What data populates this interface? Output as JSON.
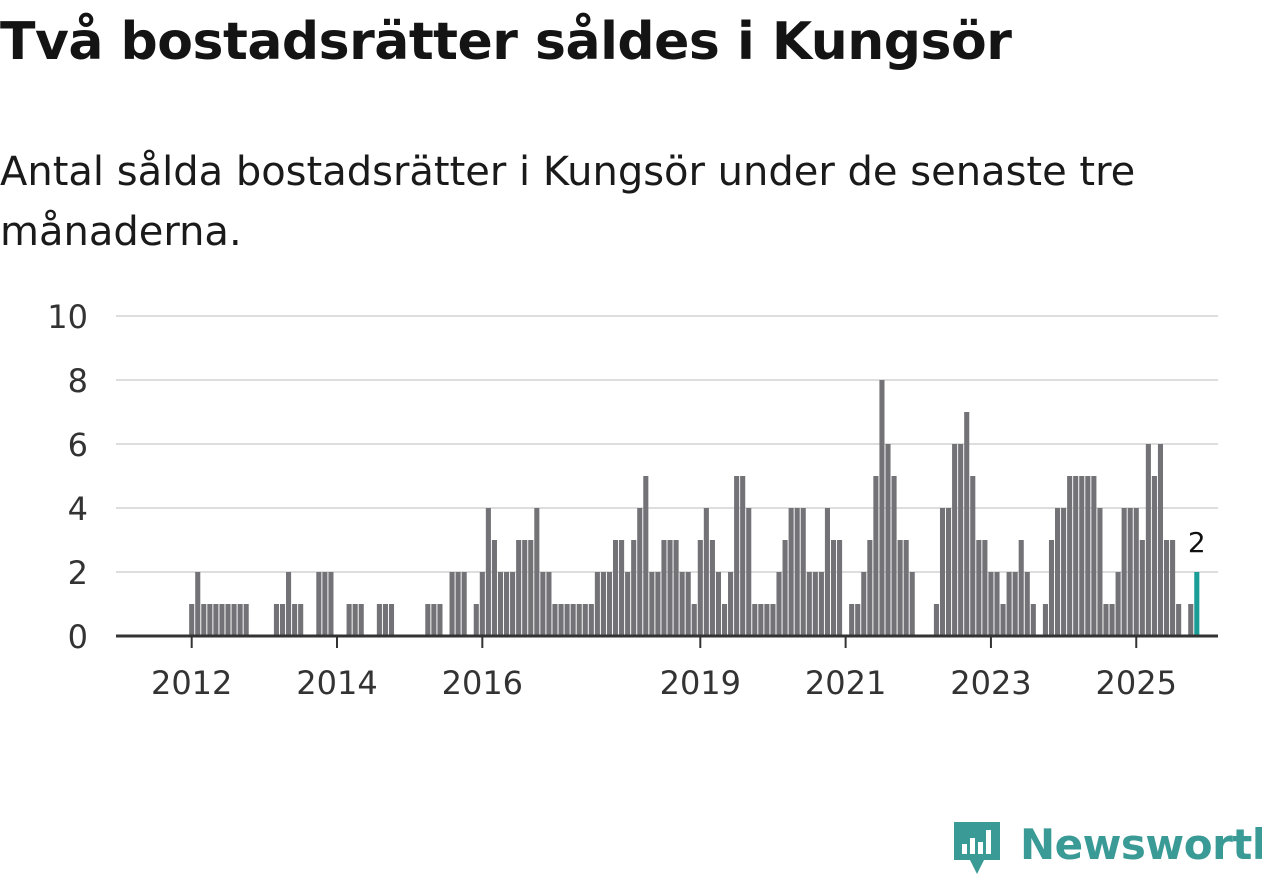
{
  "header": {
    "title": "Två bostadsrätter såldes i Kungsör",
    "subtitle": "Antal sålda bostadsrätter i Kungsör under de senaste tre månaderna."
  },
  "brand": {
    "name": "Newsworthy",
    "color": "#3a9a96"
  },
  "colors": {
    "bar": "#737277",
    "highlight": "#1a9c97",
    "grid": "#dddddd",
    "axis": "#333333"
  },
  "chart_data": {
    "type": "bar",
    "title": "Två bostadsrätter såldes i Kungsör",
    "subtitle": "Antal sålda bostadsrätter i Kungsör under de senaste tre månaderna.",
    "xlabel": "",
    "ylabel": "",
    "ylim": [
      0,
      10
    ],
    "yticks": [
      0,
      2,
      4,
      6,
      8,
      10
    ],
    "grid": true,
    "x_start": "2011-01",
    "x_end": "2026-03",
    "xtick_labels": [
      {
        "label": "2012",
        "year": 2012
      },
      {
        "label": "2014",
        "year": 2014
      },
      {
        "label": "2016",
        "year": 2016
      },
      {
        "label": "2019",
        "year": 2019
      },
      {
        "label": "2021",
        "year": 2021
      },
      {
        "label": "2023",
        "year": 2023
      },
      {
        "label": "2025",
        "year": 2025
      }
    ],
    "series": [
      {
        "name": "Sålda bostadsrätter",
        "bars": [
          {
            "month": "2012-01",
            "value": 1
          },
          {
            "month": "2012-02",
            "value": 2
          },
          {
            "month": "2012-03",
            "value": 1
          },
          {
            "month": "2012-04",
            "value": 1
          },
          {
            "month": "2012-05",
            "value": 1
          },
          {
            "month": "2012-06",
            "value": 1
          },
          {
            "month": "2012-07",
            "value": 1
          },
          {
            "month": "2012-08",
            "value": 1
          },
          {
            "month": "2012-09",
            "value": 1
          },
          {
            "month": "2012-10",
            "value": 1
          },
          {
            "month": "2013-03",
            "value": 1
          },
          {
            "month": "2013-04",
            "value": 1
          },
          {
            "month": "2013-05",
            "value": 2
          },
          {
            "month": "2013-06",
            "value": 1
          },
          {
            "month": "2013-07",
            "value": 1
          },
          {
            "month": "2013-10",
            "value": 2
          },
          {
            "month": "2013-11",
            "value": 2
          },
          {
            "month": "2013-12",
            "value": 2
          },
          {
            "month": "2014-03",
            "value": 1
          },
          {
            "month": "2014-04",
            "value": 1
          },
          {
            "month": "2014-05",
            "value": 1
          },
          {
            "month": "2014-08",
            "value": 1
          },
          {
            "month": "2014-09",
            "value": 1
          },
          {
            "month": "2014-10",
            "value": 1
          },
          {
            "month": "2015-04",
            "value": 1
          },
          {
            "month": "2015-05",
            "value": 1
          },
          {
            "month": "2015-06",
            "value": 1
          },
          {
            "month": "2015-08",
            "value": 2
          },
          {
            "month": "2015-09",
            "value": 2
          },
          {
            "month": "2015-10",
            "value": 2
          },
          {
            "month": "2015-12",
            "value": 1
          },
          {
            "month": "2016-01",
            "value": 2
          },
          {
            "month": "2016-02",
            "value": 4
          },
          {
            "month": "2016-03",
            "value": 3
          },
          {
            "month": "2016-04",
            "value": 2
          },
          {
            "month": "2016-05",
            "value": 2
          },
          {
            "month": "2016-06",
            "value": 2
          },
          {
            "month": "2016-07",
            "value": 3
          },
          {
            "month": "2016-08",
            "value": 3
          },
          {
            "month": "2016-09",
            "value": 3
          },
          {
            "month": "2016-10",
            "value": 4
          },
          {
            "month": "2016-11",
            "value": 2
          },
          {
            "month": "2016-12",
            "value": 2
          },
          {
            "month": "2017-01",
            "value": 1
          },
          {
            "month": "2017-02",
            "value": 1
          },
          {
            "month": "2017-03",
            "value": 1
          },
          {
            "month": "2017-04",
            "value": 1
          },
          {
            "month": "2017-05",
            "value": 1
          },
          {
            "month": "2017-06",
            "value": 1
          },
          {
            "month": "2017-07",
            "value": 1
          },
          {
            "month": "2017-08",
            "value": 2
          },
          {
            "month": "2017-09",
            "value": 2
          },
          {
            "month": "2017-10",
            "value": 2
          },
          {
            "month": "2017-11",
            "value": 3
          },
          {
            "month": "2017-12",
            "value": 3
          },
          {
            "month": "2018-01",
            "value": 2
          },
          {
            "month": "2018-02",
            "value": 3
          },
          {
            "month": "2018-03",
            "value": 4
          },
          {
            "month": "2018-04",
            "value": 5
          },
          {
            "month": "2018-05",
            "value": 2
          },
          {
            "month": "2018-06",
            "value": 2
          },
          {
            "month": "2018-07",
            "value": 3
          },
          {
            "month": "2018-08",
            "value": 3
          },
          {
            "month": "2018-09",
            "value": 3
          },
          {
            "month": "2018-10",
            "value": 2
          },
          {
            "month": "2018-11",
            "value": 2
          },
          {
            "month": "2018-12",
            "value": 1
          },
          {
            "month": "2019-01",
            "value": 3
          },
          {
            "month": "2019-02",
            "value": 4
          },
          {
            "month": "2019-03",
            "value": 3
          },
          {
            "month": "2019-04",
            "value": 2
          },
          {
            "month": "2019-05",
            "value": 1
          },
          {
            "month": "2019-06",
            "value": 2
          },
          {
            "month": "2019-07",
            "value": 5
          },
          {
            "month": "2019-08",
            "value": 5
          },
          {
            "month": "2019-09",
            "value": 4
          },
          {
            "month": "2019-10",
            "value": 1
          },
          {
            "month": "2019-11",
            "value": 1
          },
          {
            "month": "2019-12",
            "value": 1
          },
          {
            "month": "2020-01",
            "value": 1
          },
          {
            "month": "2020-02",
            "value": 2
          },
          {
            "month": "2020-03",
            "value": 3
          },
          {
            "month": "2020-04",
            "value": 4
          },
          {
            "month": "2020-05",
            "value": 4
          },
          {
            "month": "2020-06",
            "value": 4
          },
          {
            "month": "2020-07",
            "value": 2
          },
          {
            "month": "2020-08",
            "value": 2
          },
          {
            "month": "2020-09",
            "value": 2
          },
          {
            "month": "2020-10",
            "value": 4
          },
          {
            "month": "2020-11",
            "value": 3
          },
          {
            "month": "2020-12",
            "value": 3
          },
          {
            "month": "2021-02",
            "value": 1
          },
          {
            "month": "2021-03",
            "value": 1
          },
          {
            "month": "2021-04",
            "value": 2
          },
          {
            "month": "2021-05",
            "value": 3
          },
          {
            "month": "2021-06",
            "value": 5
          },
          {
            "month": "2021-07",
            "value": 8
          },
          {
            "month": "2021-08",
            "value": 6
          },
          {
            "month": "2021-09",
            "value": 5
          },
          {
            "month": "2021-10",
            "value": 3
          },
          {
            "month": "2021-11",
            "value": 3
          },
          {
            "month": "2021-12",
            "value": 2
          },
          {
            "month": "2022-04",
            "value": 1
          },
          {
            "month": "2022-05",
            "value": 4
          },
          {
            "month": "2022-06",
            "value": 4
          },
          {
            "month": "2022-07",
            "value": 6
          },
          {
            "month": "2022-08",
            "value": 6
          },
          {
            "month": "2022-09",
            "value": 7
          },
          {
            "month": "2022-10",
            "value": 5
          },
          {
            "month": "2022-11",
            "value": 3
          },
          {
            "month": "2022-12",
            "value": 3
          },
          {
            "month": "2023-01",
            "value": 2
          },
          {
            "month": "2023-02",
            "value": 2
          },
          {
            "month": "2023-03",
            "value": 1
          },
          {
            "month": "2023-04",
            "value": 2
          },
          {
            "month": "2023-05",
            "value": 2
          },
          {
            "month": "2023-06",
            "value": 3
          },
          {
            "month": "2023-07",
            "value": 2
          },
          {
            "month": "2023-08",
            "value": 1
          },
          {
            "month": "2023-10",
            "value": 1
          },
          {
            "month": "2023-11",
            "value": 3
          },
          {
            "month": "2023-12",
            "value": 4
          },
          {
            "month": "2024-01",
            "value": 4
          },
          {
            "month": "2024-02",
            "value": 5
          },
          {
            "month": "2024-03",
            "value": 5
          },
          {
            "month": "2024-04",
            "value": 5
          },
          {
            "month": "2024-05",
            "value": 5
          },
          {
            "month": "2024-06",
            "value": 5
          },
          {
            "month": "2024-07",
            "value": 4
          },
          {
            "month": "2024-08",
            "value": 1
          },
          {
            "month": "2024-09",
            "value": 1
          },
          {
            "month": "2024-10",
            "value": 2
          },
          {
            "month": "2024-11",
            "value": 4
          },
          {
            "month": "2024-12",
            "value": 4
          },
          {
            "month": "2025-01",
            "value": 4
          },
          {
            "month": "2025-02",
            "value": 3
          },
          {
            "month": "2025-03",
            "value": 6
          },
          {
            "month": "2025-04",
            "value": 5
          },
          {
            "month": "2025-05",
            "value": 6
          },
          {
            "month": "2025-06",
            "value": 3
          },
          {
            "month": "2025-07",
            "value": 3
          },
          {
            "month": "2025-08",
            "value": 1
          },
          {
            "month": "2025-10",
            "value": 1
          },
          {
            "month": "2025-11",
            "value": 2,
            "highlight": true,
            "label": "2"
          }
        ]
      }
    ],
    "annotations": [
      {
        "month": "2025-11",
        "text": "2"
      }
    ]
  }
}
